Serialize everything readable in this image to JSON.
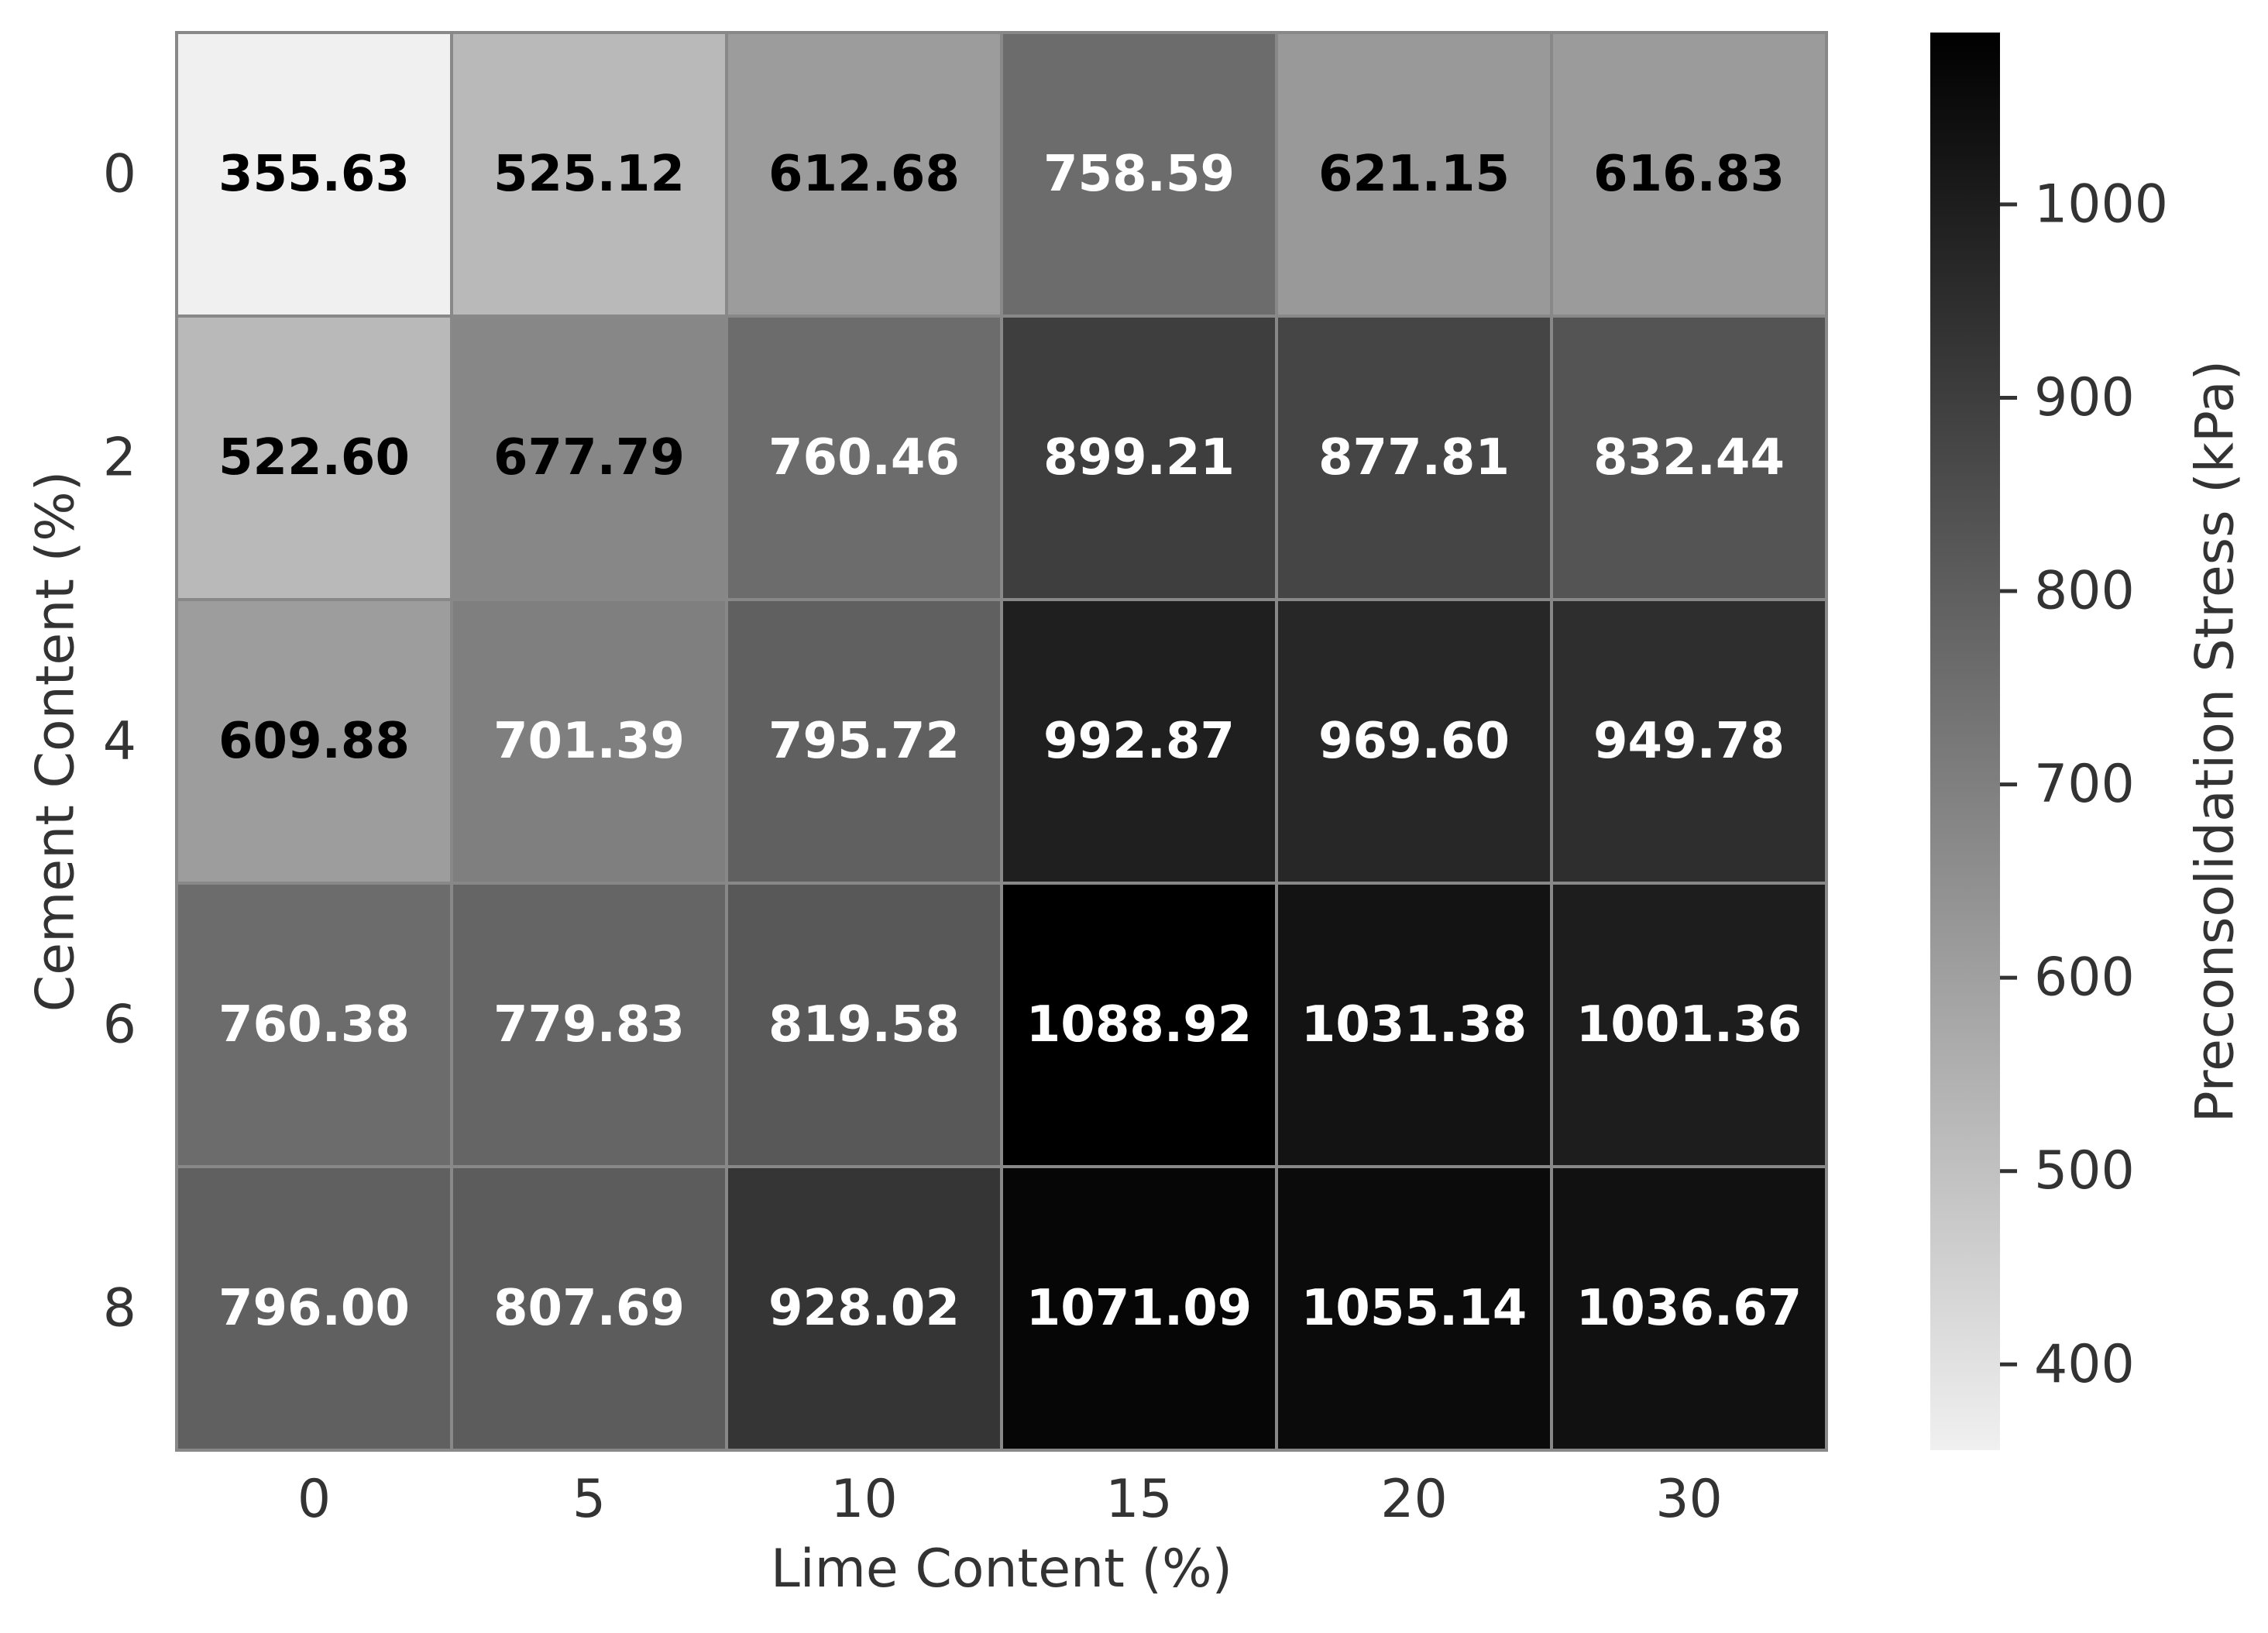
{
  "chart_data": {
    "type": "heatmap",
    "title": "",
    "xlabel": "Lime Content (%)",
    "ylabel": "Cement Content (%)",
    "x_categories": [
      "0",
      "5",
      "10",
      "15",
      "20",
      "30"
    ],
    "y_categories": [
      "0",
      "2",
      "4",
      "6",
      "8"
    ],
    "values": [
      [
        355.63,
        525.12,
        612.68,
        758.59,
        621.15,
        616.83
      ],
      [
        522.6,
        677.79,
        760.46,
        899.21,
        877.81,
        832.44
      ],
      [
        609.88,
        701.39,
        795.72,
        992.87,
        969.6,
        949.78
      ],
      [
        760.38,
        779.83,
        819.58,
        1088.92,
        1031.38,
        1001.36
      ],
      [
        796.0,
        807.69,
        928.02,
        1071.09,
        1055.14,
        1036.67
      ]
    ],
    "value_format_decimals": 2,
    "colormap": "Greys",
    "color_min": "#f0f0f0",
    "color_max": "#000000",
    "grid_line_color": "#888888",
    "colorbar": {
      "label": "Preconsolidation Stress (kPa)",
      "min": 355.63,
      "max": 1088.92,
      "ticks": [
        400,
        500,
        600,
        700,
        800,
        900,
        1000
      ]
    }
  }
}
